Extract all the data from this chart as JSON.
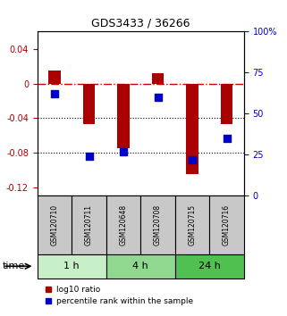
{
  "title": "GDS3433 / 36266",
  "samples": [
    "GSM120710",
    "GSM120711",
    "GSM120648",
    "GSM120708",
    "GSM120715",
    "GSM120716"
  ],
  "log10_ratio": [
    0.015,
    -0.047,
    -0.075,
    0.012,
    -0.105,
    -0.047
  ],
  "percentile_rank": [
    62,
    24,
    27,
    60,
    22,
    35
  ],
  "groups": [
    {
      "label": "1 h",
      "indices": [
        0,
        1
      ],
      "color": "#c8f0c8"
    },
    {
      "label": "4 h",
      "indices": [
        2,
        3
      ],
      "color": "#90d890"
    },
    {
      "label": "24 h",
      "indices": [
        4,
        5
      ],
      "color": "#50c050"
    }
  ],
  "ylim_left": [
    -0.13,
    0.06
  ],
  "ylim_right": [
    0,
    100
  ],
  "yticks_left": [
    0.04,
    0,
    -0.04,
    -0.08,
    -0.12
  ],
  "yticks_right": [
    100,
    75,
    50,
    25,
    0
  ],
  "bar_color": "#aa0000",
  "dot_color": "#0000cc",
  "hline_color": "#cc0000",
  "grid_color": "black",
  "bar_width": 0.35,
  "dot_size": 30,
  "background_plot": "white",
  "background_label": "#c8c8c8",
  "background_fig": "white",
  "time_label": "time",
  "legend_ratio_label": "log10 ratio",
  "legend_pct_label": "percentile rank within the sample"
}
